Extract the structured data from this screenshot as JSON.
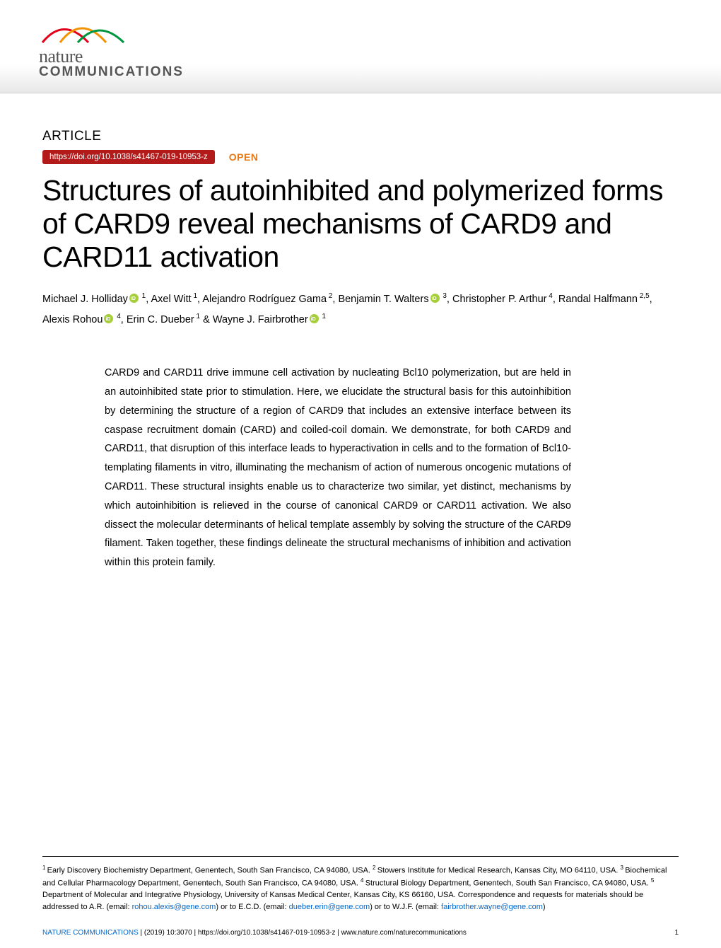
{
  "logo": {
    "nature_text": "nature",
    "communications_text": "COMMUNICATIONS",
    "swoosh_colors": [
      "#e2001a",
      "#f39200",
      "#009640"
    ]
  },
  "article_label": "ARTICLE",
  "doi_url": "https://doi.org/10.1038/s41467-019-10953-z",
  "open_label": "OPEN",
  "title": "Structures of autoinhibited and polymerized forms of CARD9 reveal mechanisms of CARD9 and CARD11 activation",
  "authors": [
    {
      "name": "Michael J. Holliday",
      "orcid": true,
      "sup": "1",
      "sep": ", "
    },
    {
      "name": "Axel Witt",
      "orcid": false,
      "sup": "1",
      "sep": ", "
    },
    {
      "name": "Alejandro Rodríguez Gama",
      "orcid": false,
      "sup": "2",
      "sep": ", "
    },
    {
      "name": "Benjamin T. Walters",
      "orcid": true,
      "sup": "3",
      "sep": ", "
    },
    {
      "name": "Christopher P. Arthur",
      "orcid": false,
      "sup": "4",
      "sep": ", "
    },
    {
      "name": "Randal Halfmann",
      "orcid": false,
      "sup": "2,5",
      "sep": ", "
    },
    {
      "name": "Alexis Rohou",
      "orcid": true,
      "sup": "4",
      "sep": ", "
    },
    {
      "name": "Erin C. Dueber",
      "orcid": false,
      "sup": "1",
      "sep": " & "
    },
    {
      "name": "Wayne J. Fairbrother",
      "orcid": true,
      "sup": "1",
      "sep": ""
    }
  ],
  "abstract": "CARD9 and CARD11 drive immune cell activation by nucleating Bcl10 polymerization, but are held in an autoinhibited state prior to stimulation. Here, we elucidate the structural basis for this autoinhibition by determining the structure of a region of CARD9 that includes an extensive interface between its caspase recruitment domain (CARD) and coiled-coil domain. We demonstrate, for both CARD9 and CARD11, that disruption of this interface leads to hyperactivation in cells and to the formation of Bcl10-templating filaments in vitro, illuminating the mechanism of action of numerous oncogenic mutations of CARD11. These structural insights enable us to characterize two similar, yet distinct, mechanisms by which autoinhibition is relieved in the course of canonical CARD9 or CARD11 activation. We also dissect the molecular determinants of helical template assembly by solving the structure of the CARD9 filament. Taken together, these findings delineate the structural mechanisms of inhibition and activation within this protein family.",
  "affiliations": {
    "text_parts": [
      {
        "sup": "1",
        "text": "Early Discovery Biochemistry Department, Genentech, South San Francisco, CA 94080, USA. "
      },
      {
        "sup": "2",
        "text": "Stowers Institute for Medical Research, Kansas City, MO 64110, USA. "
      },
      {
        "sup": "3",
        "text": "Biochemical and Cellular Pharmacology Department, Genentech, South San Francisco, CA 94080, USA. "
      },
      {
        "sup": "4",
        "text": "Structural Biology Department, Genentech, South San Francisco, CA 94080, USA. "
      },
      {
        "sup": "5",
        "text": "Department of Molecular and Integrative Physiology, University of Kansas Medical Center, Kansas City, KS 66160, USA. "
      }
    ],
    "correspondence_prefix": "Correspondence and requests for materials should be addressed to A.R. (email: ",
    "email1": "rohou.alexis@gene.com",
    "mid1": ") or to E.C.D. (email: ",
    "email2": "dueber.erin@gene.com",
    "mid2": ") or to W.J.F. (email: ",
    "email3": "fairbrother.wayne@gene.com",
    "suffix": ")"
  },
  "footer": {
    "journal": "NATURE COMMUNICATIONS",
    "citation": " |          (2019) 10:3070  | https://doi.org/10.1038/s41467-019-10953-z | www.nature.com/naturecommunications",
    "page": "1"
  },
  "colors": {
    "doi_badge_bg": "#b31b1b",
    "open_color": "#e67817",
    "link_color": "#0066cc",
    "orcid_green": "#a6ce39"
  }
}
